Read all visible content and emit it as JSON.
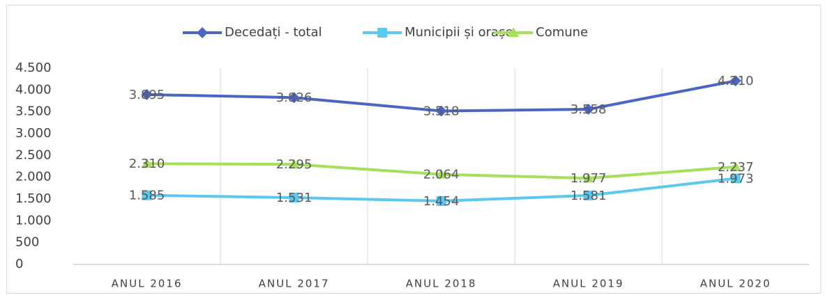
{
  "chart_data": {
    "type": "line",
    "categories": [
      "ANUL 2016",
      "ANUL 2017",
      "ANUL 2018",
      "ANUL 2019",
      "ANUL 2020"
    ],
    "series": [
      {
        "name": "Decedați - total",
        "color": "#4a66c4",
        "marker": "diamond",
        "values": [
          3895,
          3826,
          3518,
          3558,
          4210
        ],
        "value_labels": [
          "3.895",
          "3.826",
          "3.518",
          "3.558",
          "4.210"
        ]
      },
      {
        "name": "Municipii și orașe",
        "color": "#5bc8ef",
        "marker": "square",
        "values": [
          1585,
          1531,
          1454,
          1581,
          1973
        ],
        "value_labels": [
          "1.585",
          "1.531",
          "1.454",
          "1.581",
          "1.973"
        ]
      },
      {
        "name": "Comune",
        "color": "#a6e05a",
        "marker": "triangle",
        "values": [
          2310,
          2295,
          2064,
          1977,
          2237
        ],
        "value_labels": [
          "2.310",
          "2.295",
          "2.064",
          "1.977",
          "2.237"
        ]
      }
    ],
    "ylim": [
      0,
      4500
    ],
    "yticks": [
      0,
      500,
      {
        "value": 1000,
        "label": "1.000"
      },
      {
        "value": 1500,
        "label": "1.500"
      },
      {
        "value": 2000,
        "label": "2.000"
      },
      {
        "value": 2500,
        "label": "2.500"
      },
      {
        "value": 3000,
        "label": "3.000"
      },
      {
        "value": 3500,
        "label": "3.500"
      },
      {
        "value": 4000,
        "label": "4.000"
      },
      {
        "value": 4500,
        "label": "4.500"
      }
    ],
    "legend": "top",
    "grid": "vertical"
  }
}
